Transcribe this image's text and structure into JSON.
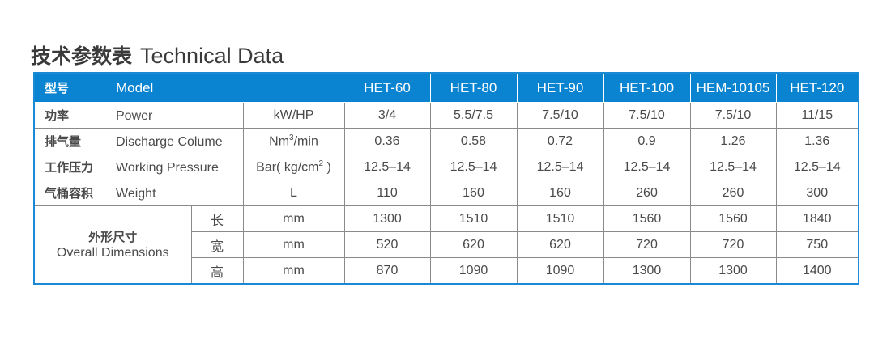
{
  "title": {
    "cn": "技术参数表",
    "en": "Technical Data"
  },
  "header": {
    "cn": "型号",
    "en": "Model",
    "models": [
      "HET-60",
      "HET-80",
      "HET-90",
      "HET-100",
      "HEM-10105",
      "HET-120"
    ]
  },
  "rows": [
    {
      "cn": "功率",
      "en": "Power",
      "unit": "kW/HP",
      "values": [
        "3/4",
        "5.5/7.5",
        "7.5/10",
        "7.5/10",
        "7.5/10",
        "11/15"
      ]
    },
    {
      "cn": "排气量",
      "en": "Discharge Colume",
      "unit_base": "Nm",
      "unit_sup": "3",
      "unit_rest": "/min",
      "values": [
        "0.36",
        "0.58",
        "0.72",
        "0.9",
        "1.26",
        "1.36"
      ]
    },
    {
      "cn": "工作压力",
      "en": "Working Pressure",
      "unit_base": "Bar( kg/cm",
      "unit_sup": "2",
      "unit_rest": " )",
      "values": [
        "12.5–14",
        "12.5–14",
        "12.5–14",
        "12.5–14",
        "12.5–14",
        "12.5–14"
      ]
    },
    {
      "cn": "气桶容积",
      "en": "Weight",
      "unit": "L",
      "values": [
        "110",
        "160",
        "160",
        "260",
        "260",
        "300"
      ]
    }
  ],
  "dimensions": {
    "cn": "外形尺寸",
    "en": "Overall Dimensions",
    "rows": [
      {
        "cn": "长",
        "unit": "mm",
        "values": [
          "1300",
          "1510",
          "1510",
          "1560",
          "1560",
          "1840"
        ]
      },
      {
        "cn": "宽",
        "unit": "mm",
        "values": [
          "520",
          "620",
          "620",
          "720",
          "720",
          "750"
        ]
      },
      {
        "cn": "高",
        "unit": "mm",
        "values": [
          "870",
          "1090",
          "1090",
          "1300",
          "1300",
          "1400"
        ]
      }
    ]
  },
  "colors": {
    "header": "#0a84d0",
    "border": "#1a8ad4"
  }
}
